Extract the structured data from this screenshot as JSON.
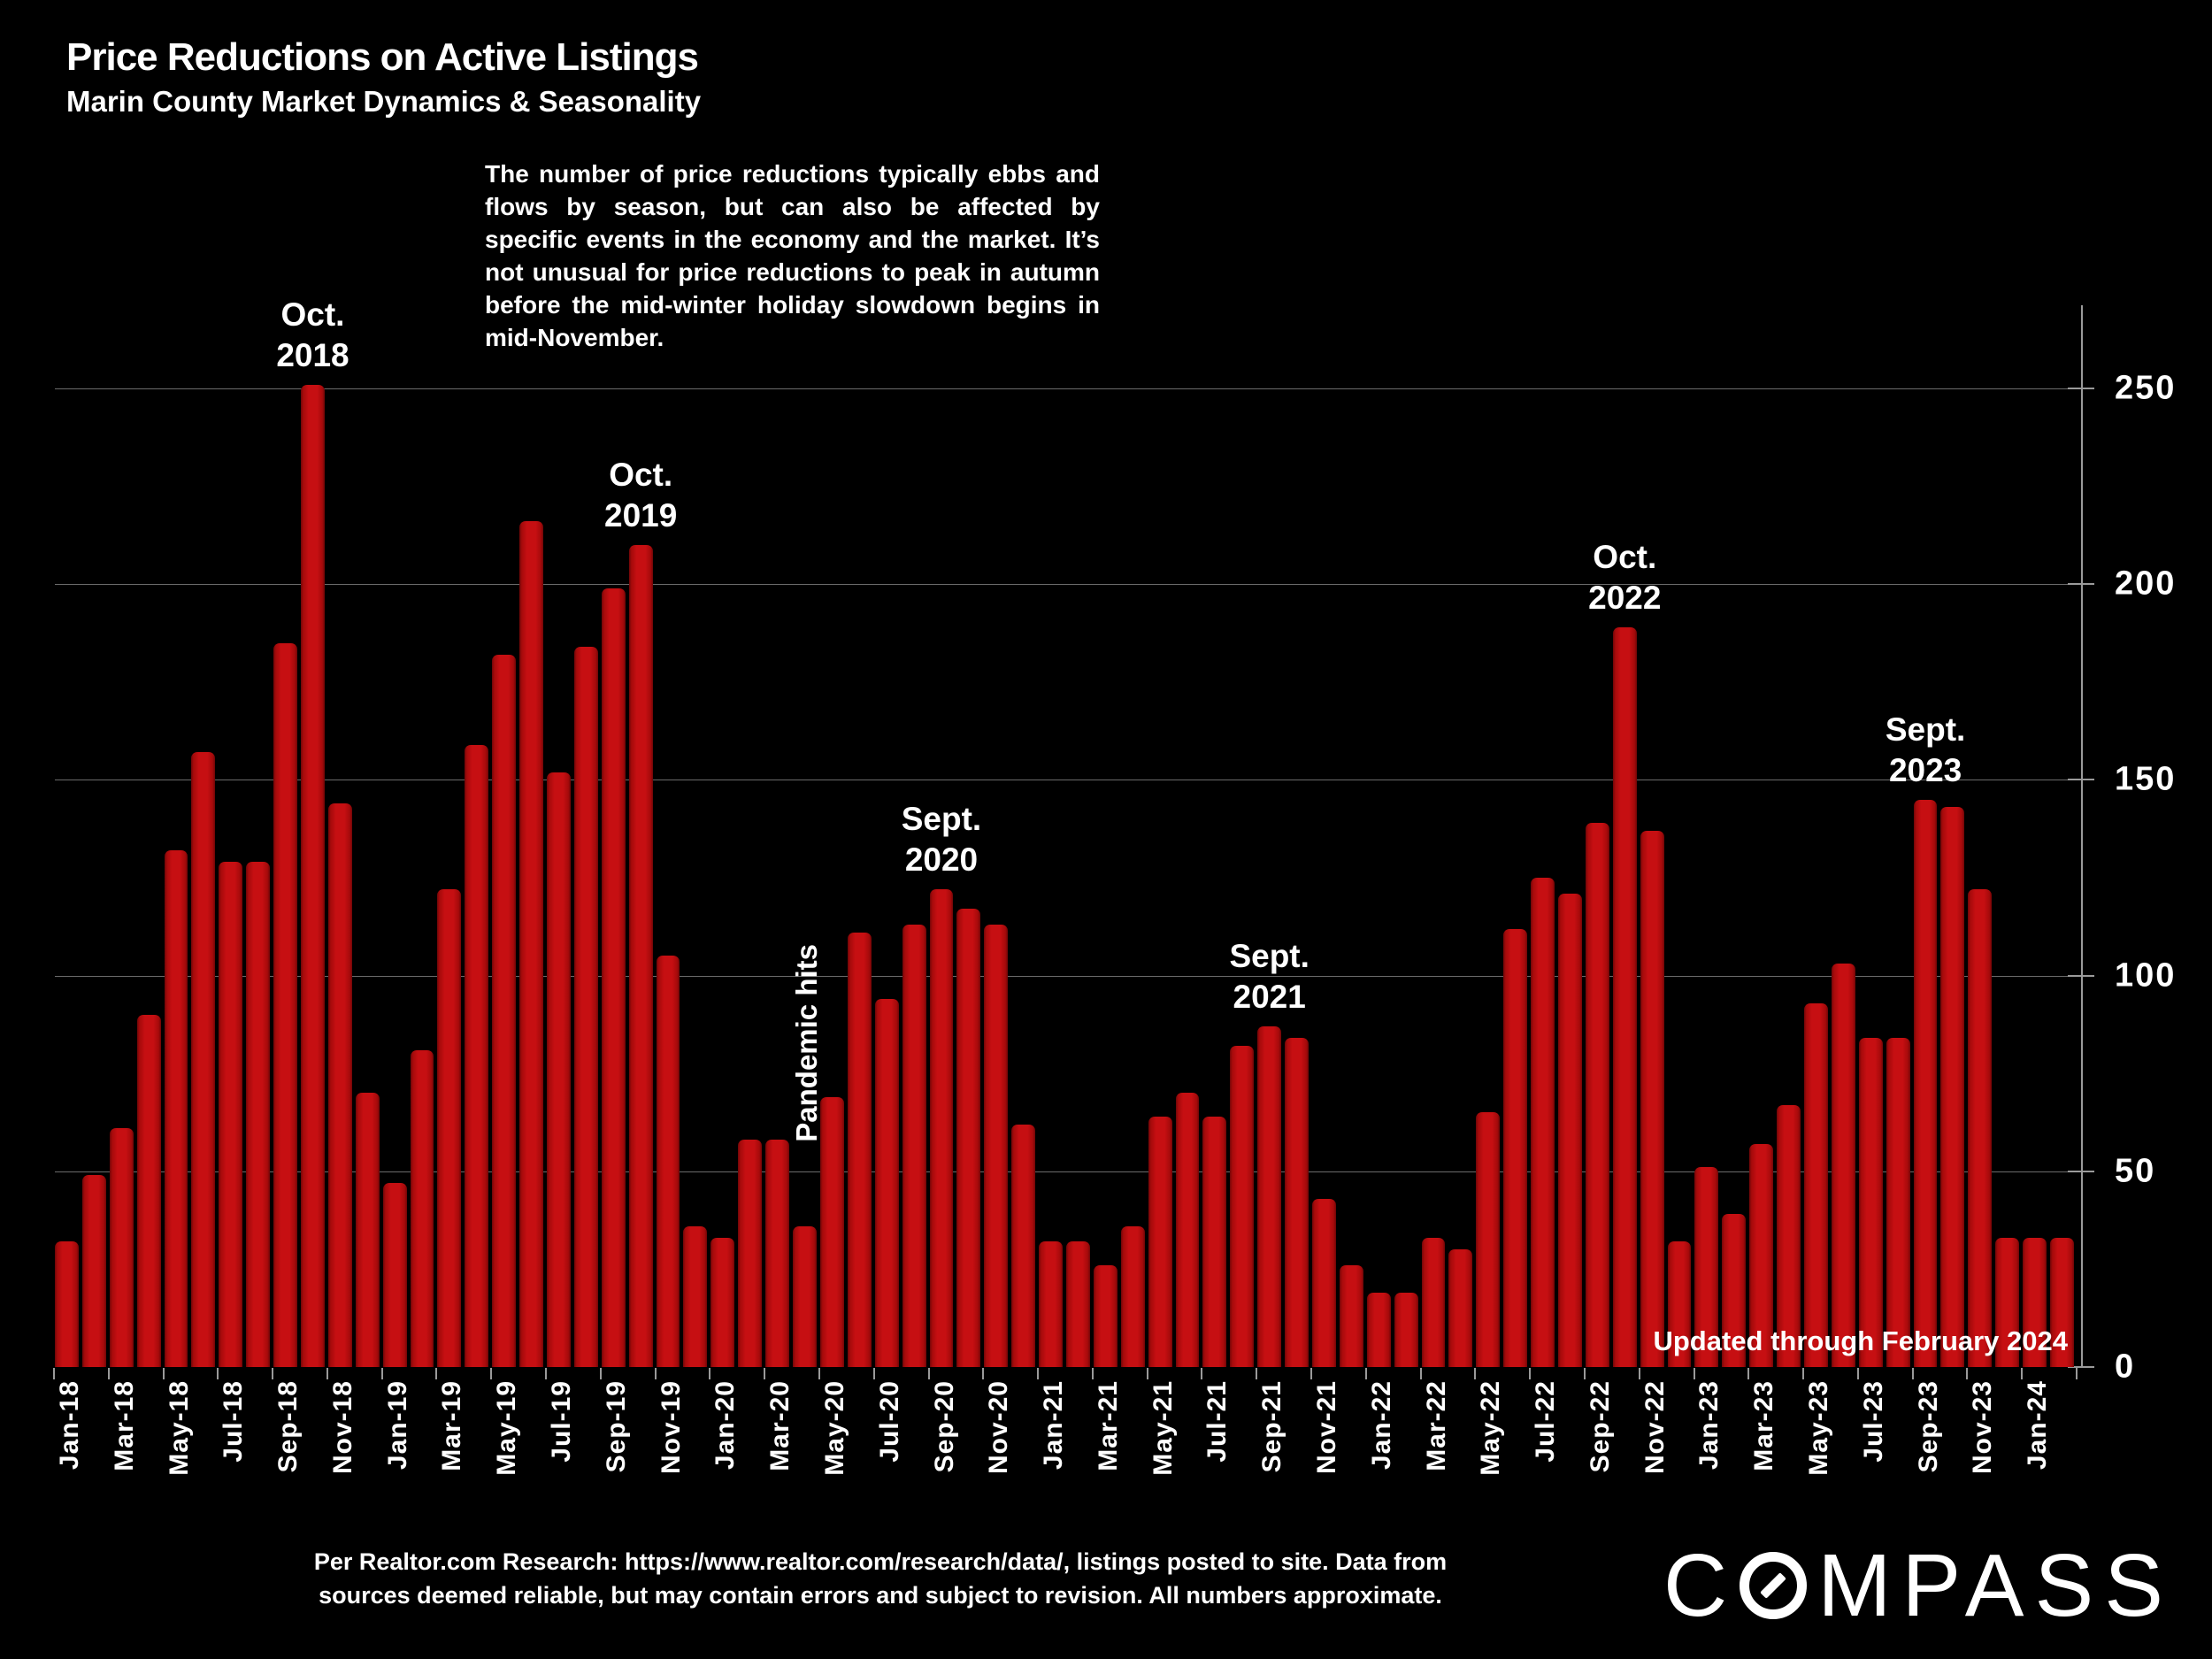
{
  "header": {
    "title": "Price Reductions on Active Listings",
    "subtitle": "Marin County Market Dynamics & Seasonality"
  },
  "annotation": "The number of price reductions typically ebbs and flows by season, but can also be affected by specific events in the economy and the market. It’s not unusual for price reductions to peak in autumn before the mid-winter holiday slowdown begins in mid-November.",
  "chart_data": {
    "type": "bar",
    "title": "Price Reductions on Active Listings",
    "xlabel": "",
    "ylabel": "",
    "x": [
      "Jan-18",
      "Feb-18",
      "Mar-18",
      "Apr-18",
      "May-18",
      "Jun-18",
      "Jul-18",
      "Aug-18",
      "Sep-18",
      "Oct-18",
      "Nov-18",
      "Dec-18",
      "Jan-19",
      "Feb-19",
      "Mar-19",
      "Apr-19",
      "May-19",
      "Jun-19",
      "Jul-19",
      "Aug-19",
      "Sep-19",
      "Oct-19",
      "Nov-19",
      "Dec-19",
      "Jan-20",
      "Feb-20",
      "Mar-20",
      "Apr-20",
      "May-20",
      "Jun-20",
      "Jul-20",
      "Aug-20",
      "Sep-20",
      "Oct-20",
      "Nov-20",
      "Dec-20",
      "Jan-21",
      "Feb-21",
      "Mar-21",
      "Apr-21",
      "May-21",
      "Jun-21",
      "Jul-21",
      "Aug-21",
      "Sep-21",
      "Oct-21",
      "Nov-21",
      "Dec-21",
      "Jan-22",
      "Feb-22",
      "Mar-22",
      "Apr-22",
      "May-22",
      "Jun-22",
      "Jul-22",
      "Aug-22",
      "Sep-22",
      "Oct-22",
      "Nov-22",
      "Dec-22",
      "Jan-23",
      "Feb-23",
      "Mar-23",
      "Apr-23",
      "May-23",
      "Jun-23",
      "Jul-23",
      "Aug-23",
      "Sep-23",
      "Oct-23",
      "Nov-23",
      "Dec-23",
      "Jan-24",
      "Feb-24"
    ],
    "values": [
      32,
      49,
      61,
      90,
      132,
      157,
      129,
      129,
      185,
      251,
      144,
      70,
      47,
      81,
      122,
      159,
      182,
      216,
      152,
      184,
      199,
      210,
      105,
      36,
      33,
      58,
      58,
      36,
      69,
      111,
      94,
      113,
      122,
      117,
      113,
      62,
      32,
      32,
      26,
      36,
      64,
      70,
      64,
      82,
      87,
      84,
      43,
      26,
      19,
      19,
      33,
      30,
      65,
      112,
      125,
      121,
      139,
      189,
      137,
      32,
      51,
      39,
      57,
      67,
      93,
      103,
      84,
      84,
      145,
      143,
      122,
      33,
      33,
      33
    ],
    "ylim": [
      0,
      265
    ],
    "yticks": [
      0,
      50,
      100,
      150,
      200,
      250
    ],
    "x_label_every": 2,
    "grid": true,
    "legend": "none",
    "bar_color": "#c60f12",
    "background_color": "#000000",
    "peak_labels": [
      {
        "lines": [
          "Oct.",
          "2018"
        ],
        "month": "Oct-18"
      },
      {
        "lines": [
          "Oct.",
          "2019"
        ],
        "month": "Oct-19"
      },
      {
        "lines": [
          "Sept.",
          "2020"
        ],
        "month": "Sep-20"
      },
      {
        "lines": [
          "Sept.",
          "2021"
        ],
        "month": "Sep-21"
      },
      {
        "lines": [
          "Oct.",
          "2022"
        ],
        "month": "Oct-22"
      },
      {
        "lines": [
          "Sept.",
          "2023"
        ],
        "month": "Sep-23"
      }
    ],
    "event_label": {
      "text": "Pandemic hits",
      "month": "Apr-20"
    },
    "updated_note": "Updated through February 2024"
  },
  "footer": {
    "source_line1": "Per Realtor.com Research:  https://www.realtor.com/research/data/, listings posted to site. Data from",
    "source_line2": "sources deemed reliable, but may contain errors and subject to revision. All numbers approximate.",
    "logo_text": "COMPASS"
  }
}
